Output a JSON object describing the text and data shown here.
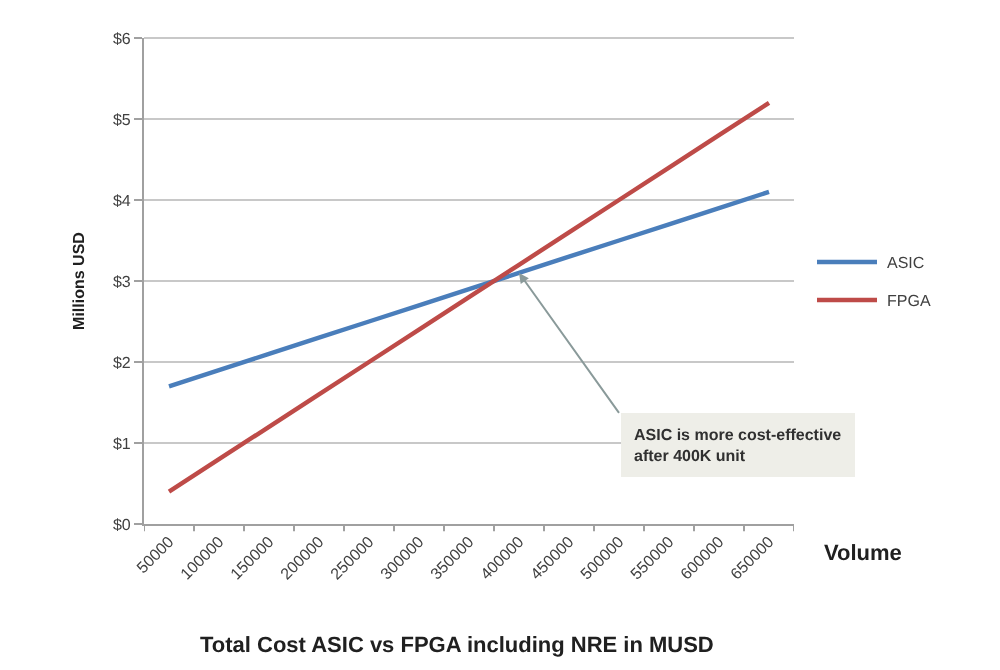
{
  "chart_data": {
    "type": "line",
    "title": "Total Cost ASIC vs FPGA including NRE in MUSD",
    "xlabel": "Volume",
    "ylabel": "Millions USD",
    "categories": [
      "50000",
      "100000",
      "150000",
      "200000",
      "250000",
      "300000",
      "350000",
      "400000",
      "450000",
      "500000",
      "550000",
      "600000",
      "650000"
    ],
    "series": [
      {
        "name": "ASIC",
        "color": "#4a7ebb",
        "values": [
          1.7,
          1.9,
          2.1,
          2.3,
          2.5,
          2.7,
          2.9,
          3.1,
          3.3,
          3.5,
          3.7,
          3.9,
          4.1
        ]
      },
      {
        "name": "FPGA",
        "color": "#be4b48",
        "values": [
          0.4,
          0.8,
          1.2,
          1.6,
          2.0,
          2.4,
          2.8,
          3.2,
          3.6,
          4.0,
          4.4,
          4.8,
          5.2
        ]
      }
    ],
    "ylim": [
      0,
      6
    ],
    "yticks": [
      {
        "value": 0,
        "label": "$0"
      },
      {
        "value": 1,
        "label": "$1"
      },
      {
        "value": 2,
        "label": "$2"
      },
      {
        "value": 3,
        "label": "$3"
      },
      {
        "value": 4,
        "label": "$4"
      },
      {
        "value": 5,
        "label": "$5"
      },
      {
        "value": 6,
        "label": "$6"
      }
    ],
    "grid": "y",
    "legend": "right",
    "marker": "none",
    "line_style": "solid",
    "annotations": [
      {
        "text": "ASIC is more cost-effective\nafter 400K unit",
        "x": "400000",
        "y": 3.1
      }
    ]
  }
}
